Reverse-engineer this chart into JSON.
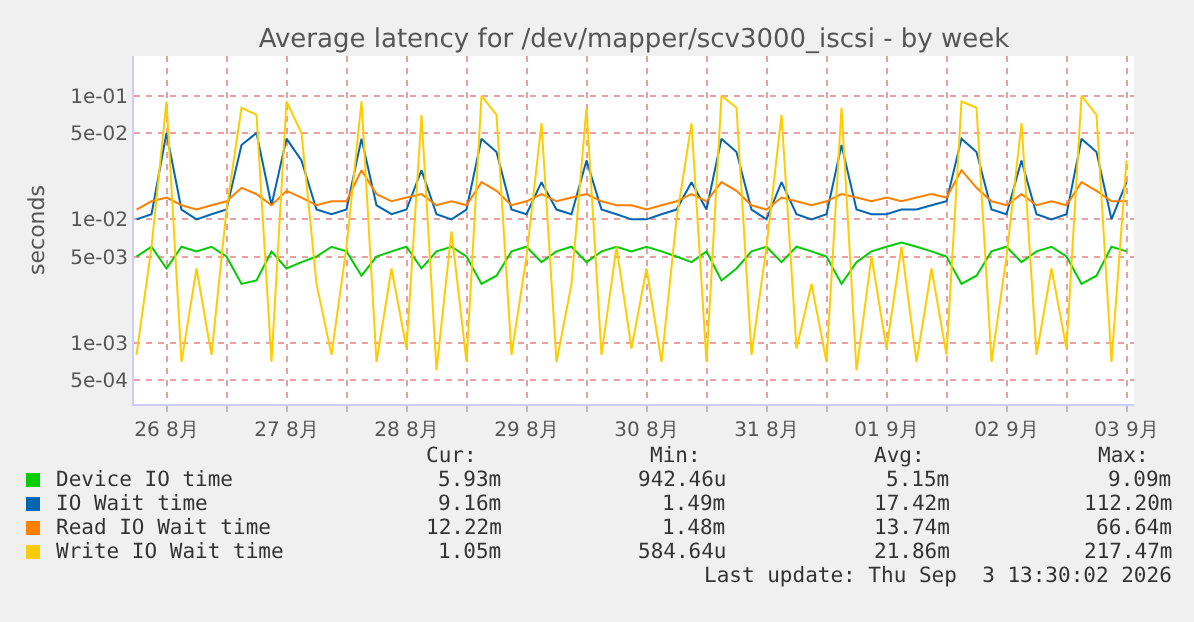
{
  "chart_data": {
    "type": "line",
    "title": "Average latency for /dev/mapper/scv3000_iscsi - by week",
    "ylabel": "seconds",
    "log": "y",
    "grid": true,
    "legend": "bottom left",
    "line_style": "solid",
    "xlim": [
      "2026-08-26T05:30",
      "2026-09-03T13:30"
    ],
    "xticks": [
      {
        "value": "2026-08-26T12:00",
        "label": "26 8月"
      },
      {
        "value": "2026-08-27T00:00",
        "label": null
      },
      {
        "value": "2026-08-27T12:00",
        "label": "27 8月"
      },
      {
        "value": "2026-08-28T00:00",
        "label": null
      },
      {
        "value": "2026-08-28T12:00",
        "label": "28 8月"
      },
      {
        "value": "2026-08-29T00:00",
        "label": null
      },
      {
        "value": "2026-08-29T12:00",
        "label": "29 8月"
      },
      {
        "value": "2026-08-30T00:00",
        "label": null
      },
      {
        "value": "2026-08-30T12:00",
        "label": "30 8月"
      },
      {
        "value": "2026-08-31T00:00",
        "label": null
      },
      {
        "value": "2026-08-31T12:00",
        "label": "31 8月"
      },
      {
        "value": "2026-09-01T00:00",
        "label": null
      },
      {
        "value": "2026-09-01T12:00",
        "label": "01 9月"
      },
      {
        "value": "2026-09-02T00:00",
        "label": null
      },
      {
        "value": "2026-09-02T12:00",
        "label": "02 9月"
      },
      {
        "value": "2026-09-03T00:00",
        "label": null
      },
      {
        "value": "2026-09-03T12:00",
        "label": "03 9月"
      }
    ],
    "ylim": [
      0.00032,
      0.21
    ],
    "yticks": [
      {
        "value": 0.0005,
        "label": "5e-04"
      },
      {
        "value": 0.001,
        "label": "1e-03"
      },
      {
        "value": 0.005,
        "label": "5e-03"
      },
      {
        "value": 0.01,
        "label": "1e-02"
      },
      {
        "value": 0.05,
        "label": "5e-02"
      },
      {
        "value": 0.1,
        "label": "1e-01"
      }
    ],
    "x": [
      "2026-08-26T06:00",
      "2026-08-26T09:00",
      "2026-08-26T12:00",
      "2026-08-26T15:00",
      "2026-08-26T18:00",
      "2026-08-26T21:00",
      "2026-08-27T00:00",
      "2026-08-27T03:00",
      "2026-08-27T06:00",
      "2026-08-27T09:00",
      "2026-08-27T12:00",
      "2026-08-27T15:00",
      "2026-08-27T18:00",
      "2026-08-27T21:00",
      "2026-08-28T00:00",
      "2026-08-28T03:00",
      "2026-08-28T06:00",
      "2026-08-28T09:00",
      "2026-08-28T12:00",
      "2026-08-28T15:00",
      "2026-08-28T18:00",
      "2026-08-28T21:00",
      "2026-08-29T00:00",
      "2026-08-29T03:00",
      "2026-08-29T06:00",
      "2026-08-29T09:00",
      "2026-08-29T12:00",
      "2026-08-29T15:00",
      "2026-08-29T18:00",
      "2026-08-29T21:00",
      "2026-08-30T00:00",
      "2026-08-30T03:00",
      "2026-08-30T06:00",
      "2026-08-30T09:00",
      "2026-08-30T12:00",
      "2026-08-30T15:00",
      "2026-08-30T18:00",
      "2026-08-30T21:00",
      "2026-08-31T00:00",
      "2026-08-31T03:00",
      "2026-08-31T06:00",
      "2026-08-31T09:00",
      "2026-08-31T12:00",
      "2026-08-31T15:00",
      "2026-08-31T18:00",
      "2026-08-31T21:00",
      "2026-09-01T00:00",
      "2026-09-01T03:00",
      "2026-09-01T06:00",
      "2026-09-01T09:00",
      "2026-09-01T12:00",
      "2026-09-01T15:00",
      "2026-09-01T18:00",
      "2026-09-01T21:00",
      "2026-09-02T00:00",
      "2026-09-02T03:00",
      "2026-09-02T06:00",
      "2026-09-02T09:00",
      "2026-09-02T12:00",
      "2026-09-02T15:00",
      "2026-09-02T18:00",
      "2026-09-02T21:00",
      "2026-09-03T00:00",
      "2026-09-03T03:00",
      "2026-09-03T06:00",
      "2026-09-03T09:00",
      "2026-09-03T12:00"
    ],
    "series": [
      {
        "name": "Device IO time",
        "color": "#00cc00",
        "values": [
          0.005,
          0.006,
          0.004,
          0.006,
          0.0055,
          0.006,
          0.005,
          0.003,
          0.0032,
          0.0055,
          0.004,
          0.0045,
          0.005,
          0.006,
          0.0055,
          0.0035,
          0.005,
          0.0055,
          0.006,
          0.004,
          0.0055,
          0.006,
          0.005,
          0.003,
          0.0035,
          0.0055,
          0.006,
          0.0045,
          0.0055,
          0.006,
          0.0045,
          0.0055,
          0.006,
          0.0055,
          0.006,
          0.0055,
          0.005,
          0.0045,
          0.0055,
          0.0032,
          0.004,
          0.0055,
          0.006,
          0.0045,
          0.006,
          0.0055,
          0.005,
          0.003,
          0.0045,
          0.0055,
          0.006,
          0.0065,
          0.006,
          0.0055,
          0.005,
          0.003,
          0.0035,
          0.0055,
          0.006,
          0.0045,
          0.0055,
          0.006,
          0.005,
          0.003,
          0.0035,
          0.006,
          0.0055
        ]
      },
      {
        "name": "IO Wait time",
        "color": "#0066b3",
        "values": [
          0.01,
          0.011,
          0.05,
          0.012,
          0.01,
          0.011,
          0.012,
          0.04,
          0.05,
          0.013,
          0.045,
          0.03,
          0.012,
          0.011,
          0.012,
          0.045,
          0.013,
          0.011,
          0.012,
          0.025,
          0.011,
          0.01,
          0.012,
          0.045,
          0.035,
          0.012,
          0.011,
          0.02,
          0.012,
          0.011,
          0.03,
          0.012,
          0.011,
          0.01,
          0.01,
          0.011,
          0.012,
          0.02,
          0.012,
          0.045,
          0.035,
          0.012,
          0.01,
          0.02,
          0.011,
          0.01,
          0.011,
          0.04,
          0.012,
          0.011,
          0.011,
          0.012,
          0.012,
          0.013,
          0.014,
          0.045,
          0.035,
          0.012,
          0.011,
          0.03,
          0.011,
          0.01,
          0.011,
          0.045,
          0.035,
          0.01,
          0.02
        ]
      },
      {
        "name": "Read IO Wait time",
        "color": "#ff8000",
        "values": [
          0.012,
          0.014,
          0.015,
          0.013,
          0.012,
          0.013,
          0.014,
          0.018,
          0.016,
          0.013,
          0.017,
          0.015,
          0.013,
          0.014,
          0.014,
          0.025,
          0.016,
          0.014,
          0.015,
          0.016,
          0.013,
          0.014,
          0.013,
          0.02,
          0.017,
          0.013,
          0.014,
          0.016,
          0.014,
          0.015,
          0.016,
          0.014,
          0.013,
          0.013,
          0.012,
          0.013,
          0.014,
          0.016,
          0.014,
          0.02,
          0.017,
          0.013,
          0.012,
          0.015,
          0.014,
          0.013,
          0.014,
          0.016,
          0.015,
          0.014,
          0.015,
          0.014,
          0.015,
          0.016,
          0.015,
          0.025,
          0.018,
          0.014,
          0.013,
          0.016,
          0.013,
          0.014,
          0.013,
          0.02,
          0.017,
          0.014,
          0.014
        ]
      },
      {
        "name": "Write IO Wait time",
        "color": "#ffcc00",
        "values": [
          0.0008,
          0.006,
          0.09,
          0.0007,
          0.004,
          0.0008,
          0.012,
          0.08,
          0.07,
          0.0007,
          0.09,
          0.05,
          0.003,
          0.0008,
          0.006,
          0.09,
          0.0007,
          0.004,
          0.0009,
          0.07,
          0.0006,
          0.008,
          0.0007,
          0.1,
          0.07,
          0.0008,
          0.005,
          0.06,
          0.0007,
          0.003,
          0.08,
          0.0008,
          0.006,
          0.0009,
          0.004,
          0.0007,
          0.01,
          0.06,
          0.0007,
          0.1,
          0.08,
          0.0008,
          0.006,
          0.07,
          0.0009,
          0.003,
          0.0007,
          0.08,
          0.0006,
          0.005,
          0.0009,
          0.006,
          0.0007,
          0.004,
          0.0008,
          0.09,
          0.08,
          0.0007,
          0.005,
          0.06,
          0.0008,
          0.004,
          0.0009,
          0.1,
          0.07,
          0.0007,
          0.03
        ]
      }
    ],
    "annotations": [
      "Cur:",
      "Min:",
      "Avg:",
      "Max:",
      "5.93m",
      "942.46u",
      "5.15m",
      "9.09m",
      "9.16m",
      "1.49m",
      "17.42m",
      "112.20m",
      "12.22m",
      "1.48m",
      "13.74m",
      "66.64m",
      "1.05m",
      "584.64u",
      "21.86m",
      "217.47m",
      "Last update: Thu Sep  3 13:30:02 2026"
    ]
  }
}
